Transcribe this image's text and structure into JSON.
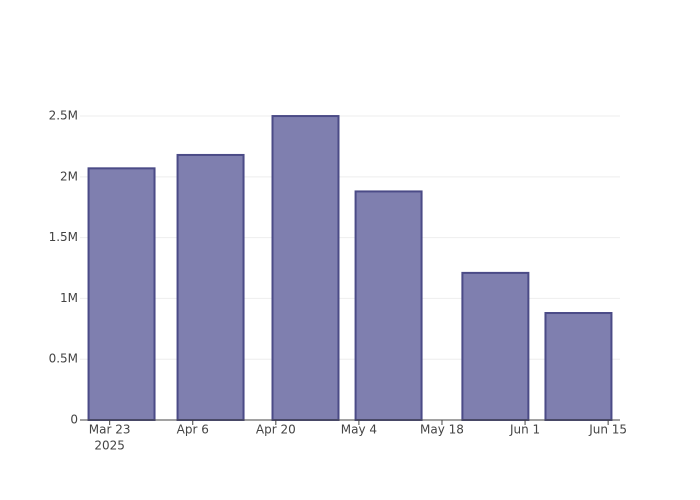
{
  "chart_data": {
    "type": "bar",
    "x": [
      "2025-03-25",
      "2025-04-09",
      "2025-04-25",
      "2025-05-09",
      "2025-05-27",
      "2025-06-10"
    ],
    "values": [
      2070000,
      2180000,
      2500000,
      1880000,
      1210000,
      880000
    ],
    "color": "#7f7faf",
    "edge_color": "#4b4b87",
    "xlim": [
      "2025-03-18",
      "2025-06-17"
    ],
    "xticks": [
      {
        "value": "2025-03-23",
        "label": "Mar 23"
      },
      {
        "value": "2025-04-06",
        "label": "Apr 6"
      },
      {
        "value": "2025-04-20",
        "label": "Apr 20"
      },
      {
        "value": "2025-05-04",
        "label": "May 4"
      },
      {
        "value": "2025-05-18",
        "label": "May 18"
      },
      {
        "value": "2025-06-01",
        "label": "Jun 1"
      },
      {
        "value": "2025-06-15",
        "label": "Jun 15"
      }
    ],
    "x_year_label": "2025",
    "ylim": [
      0,
      2632000
    ],
    "yticks": [
      0,
      {
        "value": 500000,
        "label": "0.5M"
      },
      {
        "value": 1000000,
        "label": "1M"
      },
      {
        "value": 1500000,
        "label": "1.5M"
      },
      {
        "value": 2000000,
        "label": "2M"
      },
      {
        "value": 2500000,
        "label": "2.5M"
      }
    ],
    "grid": true
  }
}
